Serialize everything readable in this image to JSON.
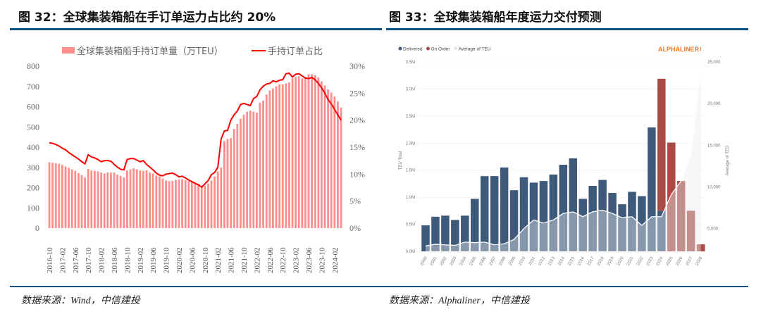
{
  "left": {
    "title": "图 32：全球集装箱船在手订单运力占比约 20%",
    "source": "数据来源：Wind，中信建投"
  },
  "right": {
    "title": "图 33：全球集装箱船年度运力交付预测",
    "source": "数据来源：Alphaliner，中信建投",
    "logo": "ALPHALINER"
  },
  "chart_data": [
    {
      "type": "bar+line",
      "legend": [
        "全球集装箱船手持订单量（万TEU）",
        "手持订单占比"
      ],
      "legend_placement": "top",
      "colors": {
        "bar": "#ff8f8f",
        "line": "#ff0000"
      },
      "y_left": {
        "range": [
          0,
          800
        ],
        "ticks": [
          "0",
          "100",
          "200",
          "300",
          "400",
          "500",
          "600",
          "700",
          "800"
        ]
      },
      "y_right": {
        "range": [
          0,
          30
        ],
        "ticks": [
          "0%",
          "5%",
          "10%",
          "15%",
          "20%",
          "25%",
          "30%"
        ]
      },
      "x_tick_labels": [
        "2016-10",
        "2017-02",
        "2017-06",
        "2017-10",
        "2018-02",
        "2018-06",
        "2018-10",
        "2019-02",
        "2019-06",
        "2019-10",
        "2020-02",
        "2020-06",
        "2020-10",
        "2021-02",
        "2021-06",
        "2021-10",
        "2022-02",
        "2022-06",
        "2022-10",
        "2023-02",
        "2023-06",
        "2023-10",
        "2024-02"
      ],
      "x_start": "2016-10",
      "orderbook_10k_teu": [
        325,
        323,
        320,
        318,
        312,
        305,
        298,
        290,
        283,
        272,
        262,
        250,
        292,
        285,
        283,
        280,
        275,
        270,
        275,
        275,
        275,
        265,
        258,
        250,
        285,
        290,
        295,
        290,
        285,
        283,
        285,
        275,
        270,
        260,
        255,
        245,
        235,
        232,
        233,
        238,
        240,
        242,
        236,
        232,
        230,
        225,
        218,
        205,
        210,
        220,
        235,
        255,
        280,
        300,
        430,
        440,
        445,
        490,
        515,
        540,
        560,
        575,
        580,
        575,
        570,
        620,
        630,
        660,
        680,
        690,
        700,
        710,
        710,
        715,
        720,
        740,
        745,
        750,
        740,
        745,
        760,
        760,
        755,
        745,
        725,
        705,
        685,
        670,
        650,
        625,
        595
      ],
      "orderbook_share_pct": [
        15.8,
        15.7,
        15.5,
        15.2,
        14.8,
        14.5,
        14.0,
        13.6,
        13.2,
        12.8,
        12.3,
        11.9,
        13.6,
        13.2,
        13.0,
        12.7,
        12.3,
        12.5,
        12.5,
        12.4,
        11.8,
        11.3,
        10.9,
        10.8,
        12.7,
        12.9,
        12.9,
        12.6,
        12.3,
        12.5,
        11.8,
        11.3,
        10.8,
        10.2,
        9.8,
        9.7,
        10.0,
        10.1,
        10.2,
        9.9,
        9.5,
        9.6,
        9.3,
        8.9,
        8.6,
        8.3,
        8.0,
        7.6,
        8.2,
        8.8,
        9.9,
        10.3,
        11.3,
        16.5,
        18.0,
        18.1,
        20.0,
        21.0,
        21.7,
        22.9,
        23.1,
        22.9,
        22.7,
        24.0,
        24.4,
        25.6,
        26.3,
        26.7,
        26.8,
        27.3,
        27.1,
        27.4,
        27.5,
        28.6,
        28.7,
        28.0,
        28.5,
        28.6,
        28.2,
        27.8,
        27.7,
        27.9,
        27.5,
        26.8,
        26.0,
        25.0,
        23.8,
        23.0,
        22.0,
        21.0,
        20.0
      ]
    },
    {
      "type": "bar+area",
      "legend": [
        "Delivered",
        "On Order",
        "Average of TEU"
      ],
      "legend_placement": "top-left",
      "colors": {
        "delivered": "#3e5a7a",
        "on_order": "#a84a45",
        "average": "#e6e7ea",
        "logo": "#f07a28"
      },
      "ylabel": "TEU Total",
      "y2label": "Average of TEU",
      "y_left": {
        "range": [
          0,
          3.5
        ],
        "ticks": [
          "0.0M",
          "0.5M",
          "1.0M",
          "1.5M",
          "2.0M",
          "2.5M",
          "3.0M",
          "3.5M"
        ]
      },
      "y_right": {
        "range": [
          2270,
          25000
        ],
        "ticks": [
          "5,000",
          "10,000",
          "15,000",
          "20,000",
          "25,000"
        ],
        "tick_values": [
          5000,
          10000,
          15000,
          20000,
          25000
        ]
      },
      "years": [
        "2000",
        "2001",
        "2002",
        "2003",
        "2004",
        "2005",
        "2006",
        "2007",
        "2008",
        "2009",
        "2010",
        "2011",
        "2012",
        "2013",
        "2014",
        "2015",
        "2016",
        "2017",
        "2018",
        "2019",
        "2020",
        "2021",
        "2022",
        "2023",
        "2024",
        "2025",
        "2026",
        "2027",
        "2028"
      ],
      "delivered_m_teu": [
        0.48,
        0.64,
        0.66,
        0.58,
        0.66,
        0.97,
        1.39,
        1.39,
        1.55,
        1.13,
        1.37,
        1.27,
        1.3,
        1.42,
        1.6,
        1.72,
        0.97,
        1.21,
        1.32,
        1.08,
        0.87,
        1.1,
        1.02,
        2.29,
        0.75,
        0,
        0,
        0,
        0
      ],
      "on_order_m_teu": [
        0,
        0,
        0,
        0,
        0,
        0,
        0,
        0,
        0,
        0,
        0,
        0,
        0,
        0,
        0,
        0,
        0,
        0,
        0,
        0,
        0,
        0,
        0,
        0,
        2.44,
        2.01,
        1.3,
        0.75,
        0.13
      ],
      "average_teu": [
        2920,
        3120,
        3050,
        2990,
        3380,
        3310,
        3380,
        3050,
        3180,
        3700,
        5000,
        6040,
        5650,
        6040,
        6820,
        7010,
        6430,
        7010,
        7210,
        6820,
        6300,
        6430,
        5390,
        6430,
        6430,
        9090,
        10720,
        13960,
        24350
      ]
    }
  ]
}
